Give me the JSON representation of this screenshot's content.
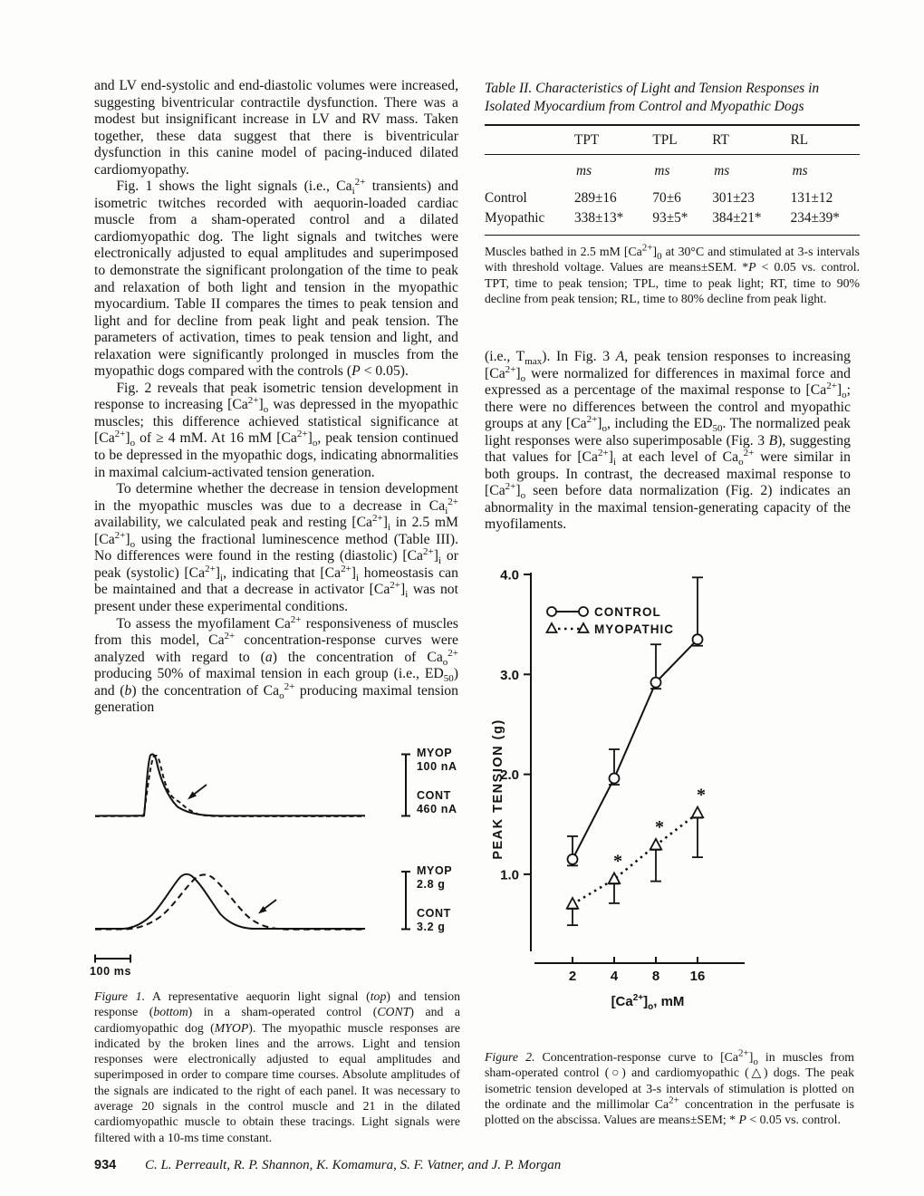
{
  "left_column": {
    "paragraphs": [
      "and LV end-systolic and end-diastolic volumes were increased, suggesting biventricular contractile dysfunction. There was a modest but insignificant increase in LV and RV mass. Taken together, these data suggest that there is biventricular dysfunction in this canine model of pacing-induced dilated cardiomyopathy.",
      "Fig. 1 shows the light signals (i.e., Ca<sub>i</sub><sup>2+</sup> transients) and isometric twitches recorded with aequorin-loaded cardiac muscle from a sham-operated control and a dilated cardiomyopathic dog. The light signals and twitches were electronically adjusted to equal amplitudes and superimposed to demonstrate the significant prolongation of the time to peak and relaxation of both light and tension in the myopathic myocardium. Table II compares the times to peak tension and light and for decline from peak light and peak tension. The parameters of activation, times to peak tension and light, and relaxation were significantly prolonged in muscles from the myopathic dogs compared with the controls (<i>P</i> &lt; 0.05).",
      "Fig. 2 reveals that peak isometric tension development in response to increasing [Ca<sup>2+</sup>]<sub>o</sub> was depressed in the myopathic muscles; this difference achieved statistical significance at [Ca<sup>2+</sup>]<sub>o</sub> of &ge; 4 mM. At 16 mM [Ca<sup>2+</sup>]<sub>o</sub>, peak tension continued to be depressed in the myopathic dogs, indicating abnormalities in maximal calcium-activated tension generation.",
      "To determine whether the decrease in tension development in the myopathic muscles was due to a decrease in Ca<sub>i</sub><sup>2+</sup> availability, we calculated peak and resting [Ca<sup>2+</sup>]<sub>i</sub> in 2.5 mM [Ca<sup>2+</sup>]<sub>o</sub> using the fractional luminescence method (Table III). No differences were found in the resting (diastolic) [Ca<sup>2+</sup>]<sub>i</sub> or peak (systolic) [Ca<sup>2+</sup>]<sub>i</sub>, indicating that [Ca<sup>2+</sup>]<sub>i</sub> homeostasis can be maintained and that a decrease in activator [Ca<sup>2+</sup>]<sub>i</sub> was not present under these experimental conditions.",
      "To assess the myofilament Ca<sup>2+</sup> responsiveness of muscles from this model, Ca<sup>2+</sup> concentration-response curves were analyzed with regard to (<i>a</i>) the concentration of Ca<sub>o</sub><sup>2+</sup> producing 50% of maximal tension in each group (i.e., ED<sub>50</sub>) and (<i>b</i>) the concentration of Ca<sub>o</sub><sup>2+</sup> producing maximal tension generation"
    ]
  },
  "right_column": {
    "paragraph": "(i.e., T<sub>max</sub>). In Fig. 3 <i>A</i>, peak tension responses to increasing [Ca<sup>2+</sup>]<sub>o</sub> were normalized for differences in maximal force and expressed as a percentage of the maximal response to [Ca<sup>2+</sup>]<sub>o</sub>; there were no differences between the control and myopathic groups at any [Ca<sup>2+</sup>]<sub>o</sub>, including the ED<sub>50</sub>. The normalized peak light responses were also superimposable (Fig. 3 <i>B</i>), suggesting that values for [Ca<sup>2+</sup>]<sub>i</sub> at each level of Ca<sub>o</sub><sup>2+</sup> were similar in both groups. In contrast, the decreased maximal response to [Ca<sup>2+</sup>]<sub>o</sub> seen before data normalization (Fig. 2) indicates an abnormality in the maximal tension-generating capacity of the myofilaments."
  },
  "table2": {
    "title_html": "<i>Table II. Characteristics of Light and Tension Responses in Isolated Myocardium from Control and Myopathic Dogs</i>",
    "columns": [
      "",
      "TPT",
      "TPL",
      "RT",
      "RL"
    ],
    "units": [
      "",
      "ms",
      "ms",
      "ms",
      "ms"
    ],
    "rows": [
      {
        "label": "Control",
        "values": [
          "289±16",
          "70±6",
          "301±23",
          "131±12"
        ]
      },
      {
        "label": "Myopathic",
        "values": [
          "338±13*",
          "93±5*",
          "384±21*",
          "234±39*"
        ]
      }
    ],
    "footnote_html": "Muscles bathed in 2.5 mM [Ca<sup>2+</sup>]<sub>0</sub> at 30°C and stimulated at 3-s intervals with threshold voltage. Values are means±SEM. *<i>P</i> &lt; 0.05 vs. control. TPT, time to peak tension; TPL, time to peak light; RT, time to 90% decline from peak tension; RL, time to 80% decline from peak light."
  },
  "figure1": {
    "light_scale": {
      "myop_label": "MYOP",
      "myop_value": "100 nA",
      "cont_label": "CONT",
      "cont_value": "460 nA"
    },
    "tension_scale": {
      "myop_label": "MYOP",
      "myop_value": "2.8 g",
      "cont_label": "CONT",
      "cont_value": "3.2 g"
    },
    "time_scale": "100 ms",
    "caption_html": "<i>Figure 1.</i> A representative aequorin light signal (<i>top</i>) and tension response (<i>bottom</i>) in a sham-operated control (<i>CONT</i>) and a cardiomyopathic dog (<i>MYOP</i>). The myopathic muscle responses are indicated by the broken lines and the arrows. Light and tension responses were electronically adjusted to equal amplitudes and superimposed in order to compare time courses. Absolute amplitudes of the signals are indicated to the right of each panel. It was necessary to average 20 signals in the control muscle and 21 in the dilated cardiomyopathic muscle to obtain these tracings. Light signals were filtered with a 10-ms time constant."
  },
  "figure2": {
    "caption_html": "<i>Figure 2.</i> Concentration-response curve to [Ca<sup>2+</sup>]<sub>o</sub> in muscles from sham-operated control (○) and cardiomyopathic (△) dogs. The peak isometric tension developed at 3-s intervals of stimulation is plotted on the ordinate and the millimolar Ca<sup>2+</sup> concentration in the perfusate is plotted on the abscissa. Values are means±SEM; * <i>P</i> &lt; 0.05 vs. control."
  },
  "chart_data": [
    {
      "figure": "Figure 1",
      "type": "line",
      "title": "Superimposed aequorin light signals (top) and isometric twitches (bottom), control (solid) vs. myopathic (dashed)",
      "traces": [
        "CONT (solid)",
        "MYOP (dashed)"
      ],
      "scale_bars": {
        "light": {
          "MYOP": "100 nA",
          "CONT": "460 nA"
        },
        "tension": {
          "MYOP": "2.8 g",
          "CONT": "3.2 g"
        },
        "time": "100 ms"
      }
    },
    {
      "figure": "Figure 2",
      "type": "line",
      "categories": [
        2,
        4,
        8,
        16
      ],
      "xlabel_html": "[Ca<sup>2+</sup>]<sub>o</sub>, mM",
      "ylabel": "PEAK TENSION (g)",
      "ylim": [
        0,
        4.0
      ],
      "yticks": [
        1.0,
        2.0,
        3.0,
        4.0
      ],
      "grid": false,
      "legend_position": "upper-left",
      "legend": [
        {
          "label": "CONTROL",
          "marker": "circle",
          "line": "solid"
        },
        {
          "label": "MYOPATHIC",
          "marker": "triangle",
          "line": "dotted"
        }
      ],
      "series": [
        {
          "name": "CONTROL",
          "marker": "circle",
          "line": "solid",
          "values": [
            1.15,
            1.96,
            2.92,
            3.35
          ],
          "sem_up": [
            0.23,
            0.29,
            0.38,
            0.62
          ],
          "significant": [
            false,
            false,
            false,
            false
          ]
        },
        {
          "name": "MYOPATHIC",
          "marker": "triangle",
          "line": "dotted",
          "values": [
            0.7,
            0.95,
            1.29,
            1.61
          ],
          "sem_down": [
            0.21,
            0.24,
            0.36,
            0.44
          ],
          "significant": [
            false,
            true,
            true,
            true
          ]
        }
      ]
    }
  ],
  "footer": {
    "page_number": "934",
    "authors": "C. L. Perreault, R. P. Shannon, K. Komamura, S. F. Vatner, and J. P. Morgan"
  }
}
